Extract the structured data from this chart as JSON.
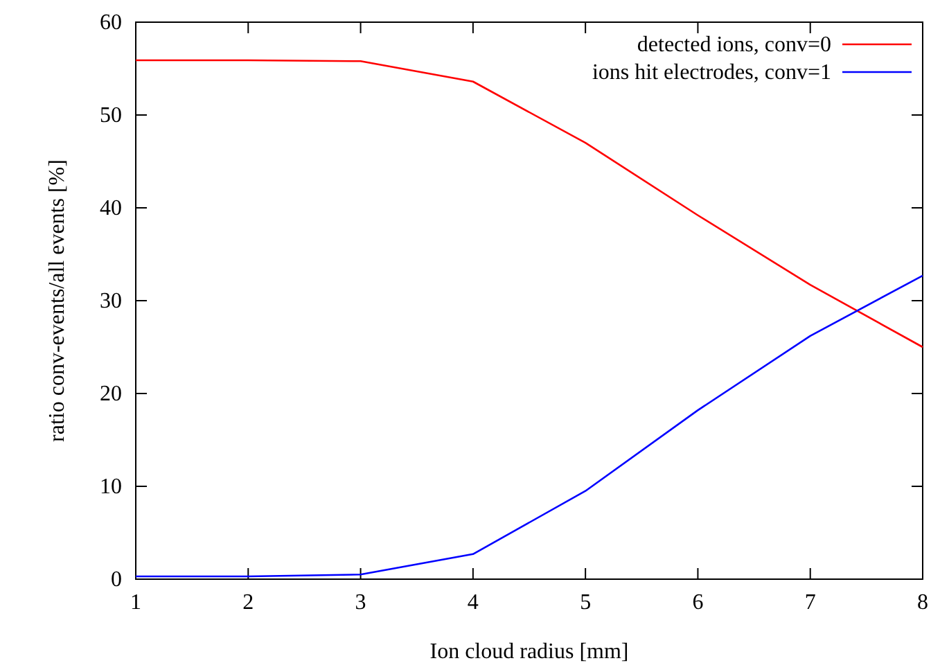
{
  "chart_data": {
    "type": "line",
    "xlabel": "Ion cloud radius [mm]",
    "ylabel": "ratio conv-events/all events [%]",
    "x": [
      1,
      2,
      3,
      4,
      5,
      6,
      7,
      8
    ],
    "series": [
      {
        "name": "detected ions, conv=0",
        "color": "#ff0000",
        "values": [
          55.9,
          55.9,
          55.8,
          53.6,
          47,
          39.2,
          31.7,
          25
        ]
      },
      {
        "name": "ions hit electrodes, conv=1",
        "color": "#0000ff",
        "values": [
          0.3,
          0.3,
          0.5,
          2.7,
          9.5,
          18.2,
          26.2,
          32.7
        ]
      }
    ],
    "xlim": [
      1,
      8
    ],
    "xticks": [
      1,
      2,
      3,
      4,
      5,
      6,
      7,
      8
    ],
    "ylim": [
      0,
      60
    ],
    "yticks": [
      0,
      10,
      20,
      30,
      40,
      50,
      60
    ],
    "grid": false,
    "legend": "top right",
    "marker": "none",
    "line_style": "solid"
  }
}
